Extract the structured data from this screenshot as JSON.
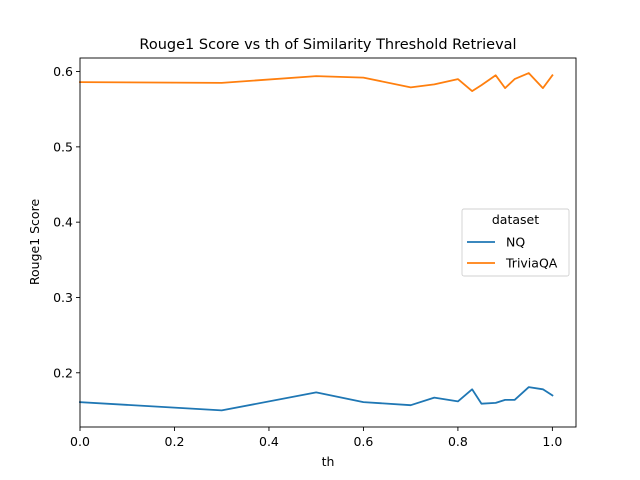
{
  "chart_data": {
    "type": "line",
    "title": "Rouge1 Score vs th of Similarity Threshold Retrieval",
    "xlabel": "th",
    "ylabel": "Rouge1 Score",
    "xlim": [
      0.0,
      1.05
    ],
    "ylim": [
      0.128,
      0.618
    ],
    "xticks": [
      "0.0",
      "0.2",
      "0.4",
      "0.6",
      "0.8",
      "1.0"
    ],
    "yticks": [
      "0.2",
      "0.3",
      "0.4",
      "0.5",
      "0.6"
    ],
    "grid": false,
    "legend": {
      "title": "dataset",
      "placement": "center-right"
    },
    "x": [
      0.0,
      0.3,
      0.5,
      0.6,
      0.7,
      0.75,
      0.8,
      0.83,
      0.85,
      0.88,
      0.9,
      0.92,
      0.95,
      0.98,
      1.0
    ],
    "series": [
      {
        "name": "NQ",
        "color": "#1f77b4",
        "values": [
          0.161,
          0.15,
          0.174,
          0.161,
          0.157,
          0.167,
          0.162,
          0.178,
          0.159,
          0.16,
          0.164,
          0.164,
          0.181,
          0.178,
          0.17
        ]
      },
      {
        "name": "TriviaQA",
        "color": "#ff7f0e",
        "values": [
          0.586,
          0.585,
          0.594,
          0.592,
          0.579,
          0.583,
          0.59,
          0.574,
          0.582,
          0.595,
          0.578,
          0.59,
          0.598,
          0.578,
          0.595
        ]
      }
    ]
  }
}
